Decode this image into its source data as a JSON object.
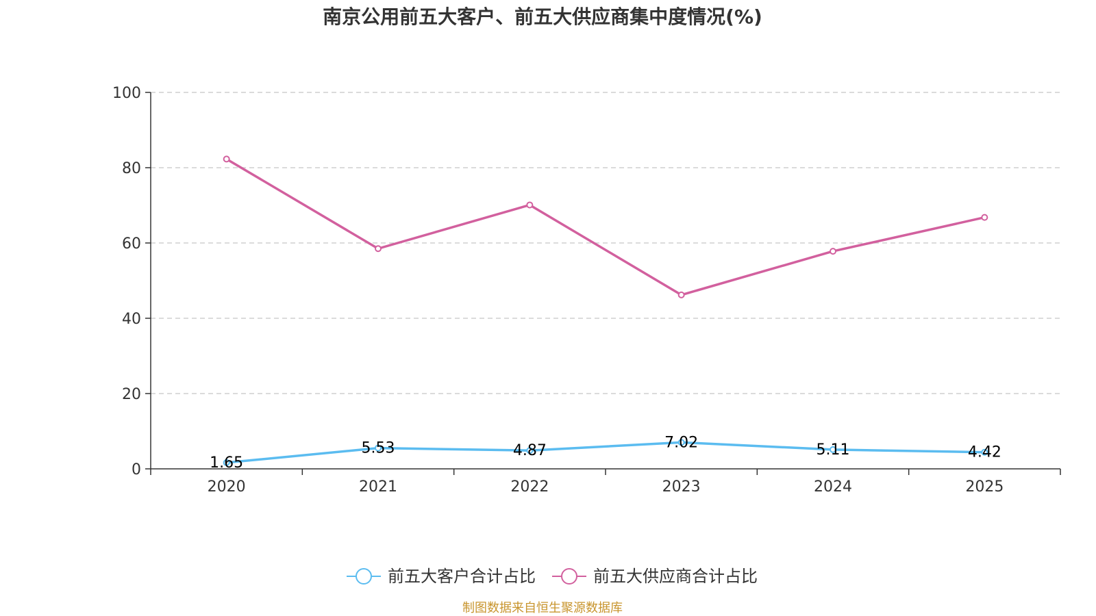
{
  "chart_data": {
    "type": "line",
    "title": "南京公用前五大客户、前五大供应商集中度情况(%)",
    "categories": [
      "2020",
      "2021",
      "2022",
      "2023",
      "2024",
      "2025"
    ],
    "ylim": [
      0,
      100
    ],
    "yticks": [
      0,
      20,
      40,
      60,
      80,
      100
    ],
    "grid": true,
    "legend_position": "bottom",
    "series": [
      {
        "name": "前五大客户合计占比",
        "color": "#5bbcf0",
        "values": [
          1.65,
          5.53,
          4.87,
          7.02,
          5.11,
          4.42
        ],
        "value_labels": [
          "1.65",
          "5.53",
          "4.87",
          "7.02",
          "5.11",
          "4.42"
        ],
        "show_labels": true
      },
      {
        "name": "前五大供应商合计占比",
        "color": "#d2609e",
        "values": [
          82.3,
          58.5,
          70.1,
          46.2,
          57.8,
          66.8
        ],
        "show_labels": false
      }
    ]
  },
  "source": {
    "text": "制图数据来自恒生聚源数据库",
    "color": "#c8952e"
  }
}
